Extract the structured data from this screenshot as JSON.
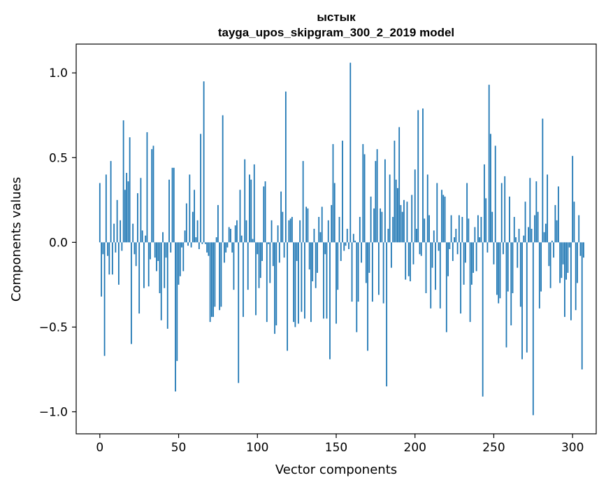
{
  "chart_data": {
    "type": "bar",
    "title": "ыстык",
    "subtitle": "tayga_upos_skipgram_300_2_2019 model",
    "xlabel": "Vector components",
    "ylabel": "Components values",
    "xlim": [
      -15,
      315
    ],
    "ylim": [
      -1.13,
      1.17
    ],
    "xticks": [
      0,
      50,
      100,
      150,
      200,
      250,
      300
    ],
    "xtick_labels": [
      "0",
      "50",
      "100",
      "150",
      "200",
      "250",
      "300"
    ],
    "yticks": [
      -1.0,
      -0.5,
      0.0,
      0.5,
      1.0
    ],
    "ytick_labels": [
      "−1.0",
      "−0.5",
      "0.0",
      "0.5",
      "1.0"
    ],
    "bar_color": "#1f77b4",
    "grid": false,
    "legend": "none",
    "values": [
      0.35,
      -0.32,
      -0.07,
      -0.67,
      0.4,
      -0.08,
      -0.19,
      0.48,
      -0.19,
      0.11,
      -0.06,
      0.25,
      -0.25,
      0.13,
      -0.05,
      0.72,
      0.31,
      0.41,
      0.36,
      0.62,
      -0.6,
      0.11,
      -0.07,
      -0.14,
      0.29,
      -0.42,
      0.38,
      0.07,
      -0.27,
      0.04,
      0.65,
      -0.26,
      -0.1,
      0.55,
      0.57,
      -0.09,
      -0.17,
      -0.11,
      -0.3,
      -0.46,
      0.06,
      -0.27,
      -0.09,
      -0.51,
      0.37,
      -0.06,
      0.44,
      0.44,
      -0.88,
      -0.7,
      -0.25,
      -0.2,
      -0.03,
      -0.17,
      0.07,
      0.23,
      -0.02,
      0.4,
      -0.03,
      0.18,
      0.31,
      0.03,
      0.13,
      -0.04,
      0.64,
      -0.01,
      0.95,
      -0.01,
      -0.06,
      -0.08,
      -0.47,
      -0.44,
      -0.44,
      -0.38,
      0.03,
      0.22,
      -0.4,
      -0.38,
      0.75,
      -0.12,
      -0.06,
      -0.03,
      0.09,
      0.08,
      -0.06,
      -0.28,
      0.1,
      0.13,
      -0.83,
      0.31,
      0.04,
      -0.44,
      0.49,
      0.13,
      -0.28,
      0.4,
      0.37,
      0.02,
      0.46,
      -0.43,
      -0.07,
      -0.27,
      -0.21,
      -0.11,
      0.33,
      0.36,
      -0.47,
      -0.01,
      -0.24,
      0.13,
      -0.14,
      -0.54,
      -0.49,
      0.1,
      -0.12,
      0.3,
      0.18,
      -0.09,
      0.89,
      -0.64,
      0.13,
      0.14,
      0.15,
      -0.47,
      -0.5,
      -0.11,
      -0.48,
      0.13,
      -0.41,
      0.48,
      -0.45,
      0.21,
      0.2,
      -0.16,
      -0.47,
      -0.23,
      0.08,
      -0.27,
      -0.18,
      0.15,
      0.06,
      0.21,
      -0.45,
      -0.07,
      -0.45,
      0.13,
      -0.69,
      0.22,
      0.58,
      0.35,
      -0.48,
      -0.28,
      0.15,
      -0.11,
      0.6,
      -0.05,
      -0.02,
      0.08,
      -0.04,
      1.06,
      -0.35,
      0.05,
      0.01,
      -0.53,
      -0.35,
      0.15,
      -0.12,
      0.58,
      0.52,
      -0.24,
      -0.64,
      -0.18,
      0.27,
      -0.35,
      0.2,
      0.48,
      0.55,
      -0.31,
      0.2,
      0.18,
      -0.36,
      0.49,
      -0.85,
      0.08,
      0.4,
      -0.15,
      0.15,
      0.6,
      0.37,
      0.32,
      0.68,
      0.22,
      0.18,
      0.25,
      -0.22,
      0.24,
      -0.2,
      -0.23,
      0.28,
      -0.13,
      0.43,
      0.08,
      0.78,
      -0.07,
      -0.08,
      0.79,
      0.14,
      -0.3,
      0.4,
      0.16,
      -0.39,
      -0.15,
      0.07,
      -0.28,
      0.35,
      -0.05,
      -0.39,
      0.31,
      0.28,
      0.27,
      -0.53,
      -0.2,
      -0.04,
      0.16,
      -0.11,
      0.03,
      0.08,
      -0.07,
      0.16,
      -0.42,
      0.15,
      -0.25,
      -0.12,
      0.35,
      0.14,
      -0.47,
      -0.25,
      -0.18,
      0.09,
      -0.17,
      0.16,
      0.03,
      0.15,
      -0.91,
      0.46,
      0.26,
      -0.06,
      0.93,
      0.64,
      0.18,
      -0.13,
      0.57,
      -0.31,
      -0.36,
      -0.33,
      0.35,
      -0.07,
      0.39,
      -0.62,
      -0.29,
      0.27,
      -0.49,
      -0.3,
      0.15,
      0.03,
      -0.15,
      0.08,
      -0.38,
      -0.69,
      0.04,
      0.24,
      -0.65,
      0.09,
      0.38,
      0.08,
      -1.02,
      0.16,
      0.36,
      0.18,
      -0.39,
      -0.29,
      0.73,
      0.06,
      0.11,
      0.4,
      -0.14,
      -0.27,
      0.01,
      -0.09,
      0.22,
      0.13,
      0.33,
      -0.24,
      -0.21,
      -0.13,
      -0.44,
      -0.22,
      -0.18,
      -0.03,
      -0.46,
      0.51,
      0.24,
      -0.4,
      -0.24,
      0.16,
      -0.08,
      -0.75,
      -0.09
    ]
  }
}
